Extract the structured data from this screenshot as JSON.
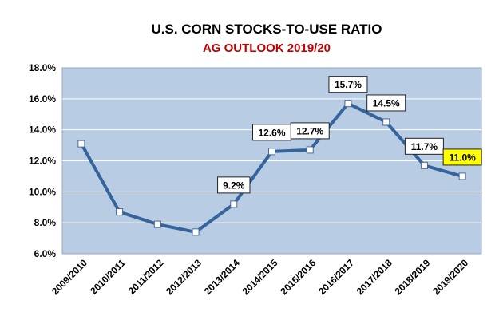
{
  "chart_data": {
    "type": "line",
    "title": "U.S. CORN STOCKS-TO-USE RATIO",
    "subtitle": "AG OUTLOOK 2019/20",
    "xlabel": "",
    "ylabel": "",
    "categories": [
      "2009/2010",
      "2010/2011",
      "2011/2012",
      "2012/2013",
      "2013/2014",
      "2014/2015",
      "2015/2016",
      "2016/2017",
      "2017/2018",
      "2018/2019",
      "2019/2020"
    ],
    "series": [
      {
        "values": [
          13.1,
          8.7,
          7.9,
          7.4,
          9.2,
          12.6,
          12.7,
          15.7,
          14.5,
          11.7,
          11.0
        ],
        "color": "#35649c"
      }
    ],
    "data_labels": [
      {
        "index": 4,
        "text": "9.2%"
      },
      {
        "index": 5,
        "text": "12.6%"
      },
      {
        "index": 6,
        "text": "12.7%"
      },
      {
        "index": 7,
        "text": "15.7%"
      },
      {
        "index": 8,
        "text": "14.5%"
      },
      {
        "index": 9,
        "text": "11.7%"
      },
      {
        "index": 10,
        "text": "11.0%",
        "highlight": true
      }
    ],
    "ylim": [
      6.0,
      18.0
    ],
    "yticks": [
      "6.0%",
      "8.0%",
      "10.0%",
      "12.0%",
      "14.0%",
      "16.0%",
      "18.0%"
    ],
    "grid": true,
    "legend": "none",
    "colors": {
      "plot_background": "#b8cce4",
      "gridline": "#ffffff",
      "line": "#35649c",
      "marker_fill": "#ffffff",
      "label_highlight": "#ffff00",
      "title": "#000000",
      "subtitle": "#c00000"
    }
  }
}
